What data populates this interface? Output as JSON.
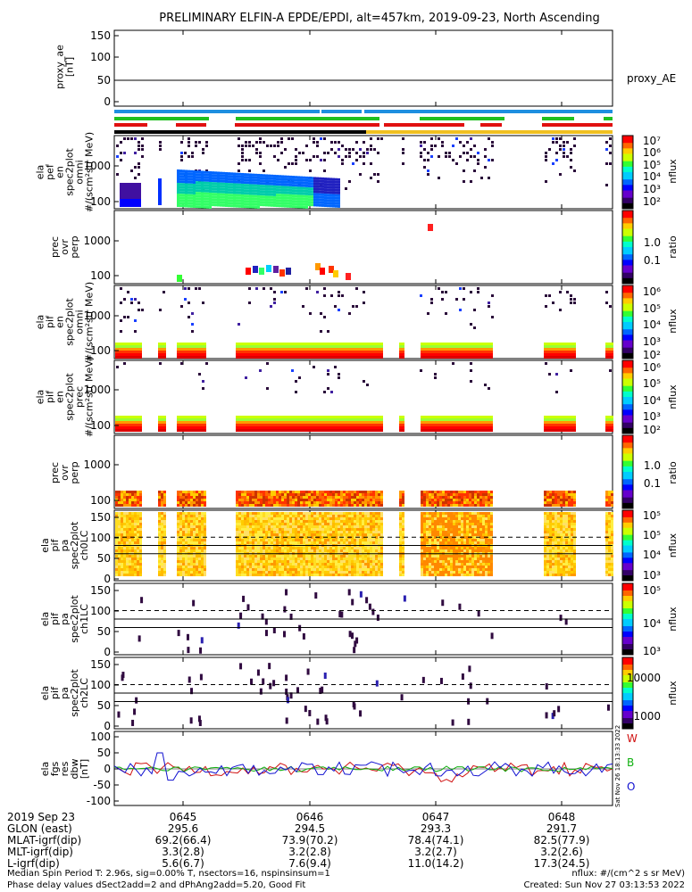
{
  "title": "PRELIMINARY ELFIN-A EPDE/EPDI, alt=457km, 2019-09-23, North Ascending",
  "panels": [
    {
      "id": "proxy_ae",
      "ylabel_lines": [
        "proxy_ae",
        "[nT]"
      ],
      "yticks": [
        "150",
        "100",
        "50",
        "0"
      ],
      "right_label": "proxy_AE"
    },
    {
      "id": "epde_omni",
      "ylabel_lines": [
        "ela",
        "pef",
        "en",
        "spec2plot",
        "omni",
        "#/(scm²str MeV)"
      ],
      "yticks": [
        "1000",
        "100"
      ],
      "colorbar_ticks": [
        "10⁷",
        "10⁶",
        "10⁵",
        "10⁴",
        "10³",
        "10²"
      ],
      "colorbar_label": "nflux"
    },
    {
      "id": "epde_ratio",
      "ylabel_lines": [
        "prec",
        "ovr",
        "perp"
      ],
      "yticks": [
        "1000",
        "100"
      ],
      "colorbar_ticks": [
        "1.0",
        "0.1"
      ],
      "colorbar_label": "ratio"
    },
    {
      "id": "epdi_omni",
      "ylabel_lines": [
        "ela",
        "pif",
        "en",
        "spec2plot",
        "omni",
        "#/(scm²str MeV)"
      ],
      "yticks": [
        "1000",
        "100"
      ],
      "colorbar_ticks": [
        "10⁶",
        "10⁵",
        "10⁴",
        "10³",
        "10²"
      ],
      "colorbar_label": "nflux"
    },
    {
      "id": "epdi_prec",
      "ylabel_lines": [
        "ela",
        "pif",
        "en",
        "spec2plot",
        "prec",
        "#/(scm²str MeV)"
      ],
      "yticks": [
        "1000",
        "100"
      ],
      "colorbar_ticks": [
        "10⁶",
        "10⁵",
        "10⁴",
        "10³",
        "10²"
      ],
      "colorbar_label": "nflux"
    },
    {
      "id": "epdi_ratio",
      "ylabel_lines": [
        "prec",
        "ovr",
        "perp"
      ],
      "yticks": [
        "1000",
        "100"
      ],
      "colorbar_ticks": [
        "1.0",
        "0.1"
      ],
      "colorbar_label": "ratio"
    },
    {
      "id": "pa_ch0",
      "ylabel_lines": [
        "ela",
        "pif",
        "pa",
        "spec2plot",
        "ch0LC"
      ],
      "yticks": [
        "150",
        "100",
        "50",
        "0"
      ],
      "colorbar_ticks": [
        "10⁵",
        "10⁵",
        "10⁴",
        "10³"
      ],
      "colorbar_label": "nflux"
    },
    {
      "id": "pa_ch1",
      "ylabel_lines": [
        "ela",
        "pif",
        "pa",
        "spec2plot",
        "ch1LC"
      ],
      "yticks": [
        "150",
        "100",
        "50",
        "0"
      ],
      "colorbar_ticks": [
        "10⁵",
        "10⁴",
        "10³"
      ],
      "colorbar_label": "nflux"
    },
    {
      "id": "pa_ch2",
      "ylabel_lines": [
        "ela",
        "pif",
        "pa",
        "spec2plot",
        "ch2LC"
      ],
      "yticks": [
        "150",
        "100",
        "50",
        "0"
      ],
      "colorbar_ticks": [
        "10000",
        "1000"
      ],
      "colorbar_label": "nflux"
    },
    {
      "id": "fgs",
      "ylabel_lines": [
        "ela",
        "fgs",
        "res",
        "dbw",
        "[nT]"
      ],
      "yticks": [
        "100",
        "50",
        "0",
        "-50",
        "-100"
      ],
      "legend": [
        "W",
        "B",
        "O"
      ]
    }
  ],
  "footer_rows": [
    {
      "label": "2019 Sep 23",
      "values": [
        "0645",
        "0646",
        "0647",
        "0648"
      ]
    },
    {
      "label": "GLON (east)",
      "values": [
        "295.6",
        "294.5",
        "293.3",
        "291.7"
      ]
    },
    {
      "label": "MLAT-igrf(dip)",
      "values": [
        "69.2(66.4)",
        "73.9(70.2)",
        "78.4(74.1)",
        "82.5(77.9)"
      ]
    },
    {
      "label": "MLT-igrf(dip)",
      "values": [
        "3.3(2.8)",
        "3.2(2.8)",
        "3.2(2.7)",
        "3.2(2.6)"
      ]
    },
    {
      "label": "L-igrf(dip)",
      "values": [
        "5.6(6.7)",
        "7.6(9.4)",
        "11.0(14.2)",
        "17.3(24.5)"
      ]
    }
  ],
  "notes": {
    "line1_left": "Median Spin Period T: 2.96s, sig=0.00% T, nsectors=16, nspinsinsum=1",
    "line2_left": "Phase delay values dSect2add=2 and dPhAng2add=5.20, Good Fit",
    "line1_right": "nflux: #/(cm^2 s sr MeV)",
    "line2_right": "Created: Sun Nov 27 03:13:53 2022",
    "side_stamp": "Sat Nov 26 18:13:33 2022"
  },
  "chart_data": {
    "type": "heatmap",
    "x": {
      "unit": "UT HHMM",
      "ticks": [
        "0645",
        "0646",
        "0647",
        "0648"
      ],
      "range": [
        "06:44:20",
        "06:49:00"
      ]
    },
    "series": [
      {
        "name": "proxy_AE",
        "values": [
          50,
          50
        ]
      }
    ],
    "fgs_series_colors": {
      "W": "#d01010",
      "B": "#10b010",
      "O": "#1010d0"
    },
    "fgs_ylim": [
      -100,
      100
    ],
    "proxy_ylim": [
      0,
      150
    ],
    "pa_ylim": [
      0,
      180
    ],
    "pa_lines": {
      "dashed": 115,
      "solid": [
        90,
        65
      ]
    },
    "colors": {
      "blue_bar": "#1e8fe0",
      "green_bar": "#20c020",
      "red_bar": "#e01010",
      "yellow_bar": "#f0c020",
      "black_bar": "#000000"
    }
  }
}
